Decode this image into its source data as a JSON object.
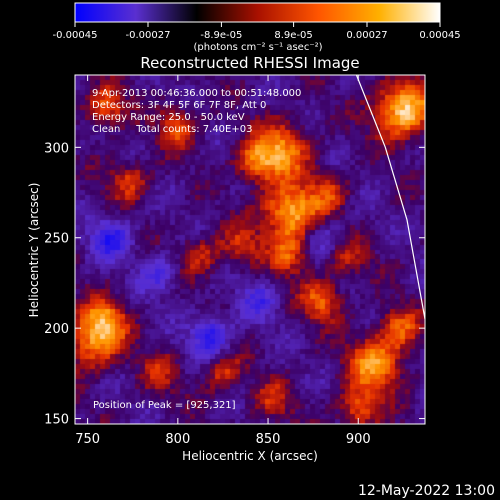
{
  "chart_data": {
    "type": "heatmap",
    "title": "Reconstructed RHESSI Image",
    "xlabel": "Heliocentric X (arcsec)",
    "ylabel": "Heliocentric Y (arcsec)",
    "xlim": [
      743,
      937
    ],
    "ylim": [
      147,
      340
    ],
    "x_ticks": [
      750,
      800,
      850,
      900
    ],
    "y_ticks": [
      150,
      200,
      250,
      300
    ],
    "colorbar": {
      "range": [
        -0.00045,
        0.00045
      ],
      "tick_values": [
        -0.00045,
        -0.00027,
        -8.9e-05,
        8.9e-05,
        0.00027,
        0.00045
      ],
      "tick_labels": [
        "-0.00045",
        "-0.00027",
        "-8.9e-05",
        "8.9e-05",
        "0.00027",
        "0.00045"
      ],
      "unit_label": "(photons cm⁻² s⁻¹ asec⁻²)",
      "colors": [
        "#0000ff",
        "#5a2fd0",
        "#000000",
        "#a81000",
        "#ff5500",
        "#ffb000",
        "#ffffff"
      ]
    },
    "annotations": [
      "9-Apr-2013 00:46:36.000 to 00:51:48.000",
      "Detectors: 3F 4F 5F 6F 7F 8F, Att 0",
      "Energy Range: 25.0 - 50.0 keV",
      "Clean     Total counts: 7.40E+03"
    ],
    "peak_label": "Position of Peak = [925,321]",
    "peak": [
      925,
      321
    ],
    "limb_points": [
      [
        899,
        340
      ],
      [
        915,
        300
      ],
      [
        927,
        260
      ],
      [
        937,
        205
      ]
    ],
    "sources": [
      {
        "x": 925,
        "y": 321,
        "amp": 0.00045
      },
      {
        "x": 862,
        "y": 264,
        "amp": 0.0004
      },
      {
        "x": 858,
        "y": 299,
        "amp": 0.00031
      },
      {
        "x": 843,
        "y": 292,
        "amp": 0.00026
      },
      {
        "x": 800,
        "y": 311,
        "amp": 0.00024
      },
      {
        "x": 760,
        "y": 322,
        "amp": 0.00028
      },
      {
        "x": 753,
        "y": 193,
        "amp": 0.00034
      },
      {
        "x": 760,
        "y": 205,
        "amp": 0.00024
      },
      {
        "x": 910,
        "y": 180,
        "amp": 0.00034
      },
      {
        "x": 900,
        "y": 155,
        "amp": 0.00026
      },
      {
        "x": 880,
        "y": 215,
        "amp": 0.00028
      },
      {
        "x": 862,
        "y": 240,
        "amp": 0.00024
      },
      {
        "x": 825,
        "y": 175,
        "amp": 0.0002
      },
      {
        "x": 790,
        "y": 175,
        "amp": 0.00016
      },
      {
        "x": 773,
        "y": 282,
        "amp": 0.00022
      },
      {
        "x": 835,
        "y": 246,
        "amp": 0.00018
      },
      {
        "x": 812,
        "y": 240,
        "amp": 0.0002
      },
      {
        "x": 884,
        "y": 275,
        "amp": 0.00018
      },
      {
        "x": 895,
        "y": 238,
        "amp": 0.00016
      },
      {
        "x": 853,
        "y": 160,
        "amp": 0.00017
      },
      {
        "x": 923,
        "y": 200,
        "amp": 0.00024
      }
    ],
    "negative_sources": [
      {
        "x": 763,
        "y": 250,
        "amp": -0.00026
      },
      {
        "x": 818,
        "y": 196,
        "amp": -0.00028
      },
      {
        "x": 790,
        "y": 230,
        "amp": -0.00018
      },
      {
        "x": 845,
        "y": 215,
        "amp": -0.00016
      },
      {
        "x": 880,
        "y": 250,
        "amp": -0.00014
      }
    ]
  },
  "footer": {
    "timestamp": "12-May-2022 13:00"
  }
}
